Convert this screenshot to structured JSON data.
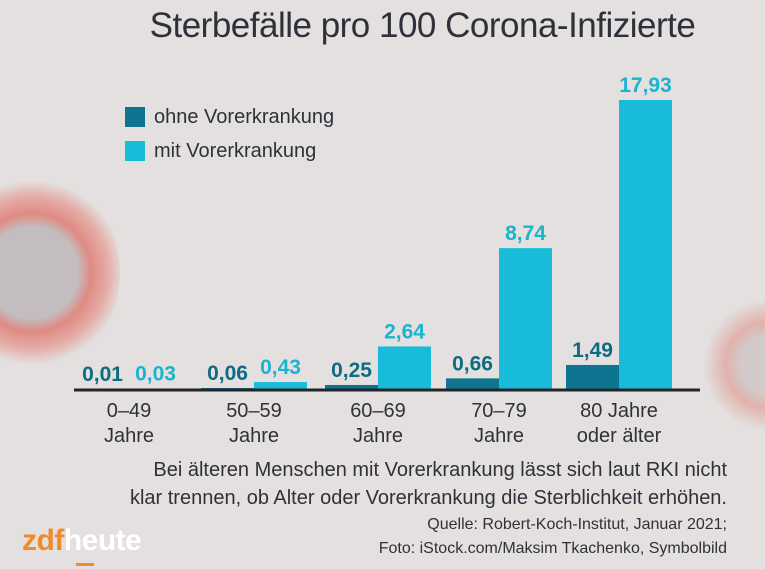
{
  "chart_data": {
    "type": "bar",
    "title": "Sterbefälle pro 100 Corona-Infizierte",
    "xlabel": "",
    "ylabel": "",
    "ylim": [
      0,
      18
    ],
    "grid": false,
    "legend_position": "top-left",
    "categories": [
      [
        "0–49",
        "Jahre"
      ],
      [
        "50–59",
        "Jahre"
      ],
      [
        "60–69",
        "Jahre"
      ],
      [
        "70–79",
        "Jahre"
      ],
      [
        "80 Jahre",
        "oder älter"
      ]
    ],
    "series": [
      {
        "name": "ohne Vorerkrankung",
        "color": "#0e7590",
        "values": [
          0.01,
          0.06,
          0.25,
          0.66,
          1.49
        ],
        "labels": [
          "0,01",
          "0,06",
          "0,25",
          "0,66",
          "1,49"
        ]
      },
      {
        "name": "mit Vorerkrankung",
        "color": "#18bcd8",
        "values": [
          0.03,
          0.43,
          2.64,
          8.74,
          17.93
        ],
        "labels": [
          "0,03",
          "0,43",
          "2,64",
          "8,74",
          "17,93"
        ]
      }
    ]
  },
  "caption": {
    "line1": "Bei älteren Menschen mit Vorerkrankung lässt sich laut RKI nicht",
    "line2": "klar trennen, ob Alter oder Vorerkrankung die Sterblichkeit erhöhen."
  },
  "source": {
    "line1": "Quelle: Robert-Koch-Institut, Januar 2021;",
    "line2": "Foto: iStock.com/Maksim Tkachenko, Symbolbild"
  },
  "logo": {
    "part1": "zdf",
    "part2": "heute"
  },
  "colors": {
    "background": "#e3e0df",
    "axis": "#23252b",
    "label_dark": "#0e6b82",
    "label_light": "#1ab4cf",
    "brand_orange": "#f08a2c"
  }
}
